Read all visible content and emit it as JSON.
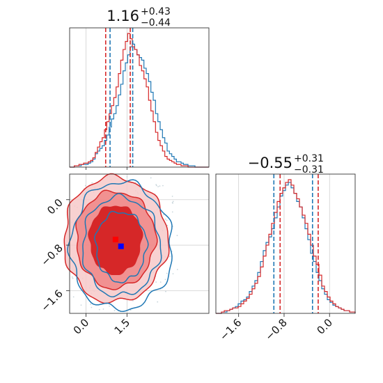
{
  "chart_data": {
    "type": "corner",
    "colors": {
      "blue": "#1f77b4",
      "red": "#d62728",
      "marker_blue": "#0000ff",
      "marker_red": "#ff0000",
      "grid": "#d0d0d0"
    },
    "params": [
      {
        "title_value": "1.16",
        "title_plus": "+0.43",
        "title_minus": "−0.44",
        "range": [
          -0.6,
          4.5
        ],
        "ticks": [
          0.0,
          1.5
        ],
        "tick_labels": [
          "0.0",
          "1.5"
        ],
        "quantile_lines_blue": [
          0.88,
          1.71
        ],
        "quantile_lines_red": [
          0.72,
          1.62
        ]
      },
      {
        "title_value": "−0.55",
        "title_plus": "+0.31",
        "title_minus": "−0.31",
        "range": [
          -2.0,
          0.45
        ],
        "ticks": [
          -1.6,
          -0.8,
          0.0
        ],
        "tick_labels": [
          "−1.6",
          "−0.8",
          "0.0"
        ],
        "quantile_lines_blue": [
          -0.98,
          -0.3
        ],
        "quantile_lines_red": [
          -0.87,
          -0.2
        ]
      }
    ],
    "hist_x_blue": [
      0.0,
      0.0,
      0.01,
      0.01,
      0.01,
      0.02,
      0.02,
      0.02,
      0.03,
      0.04,
      0.06,
      0.1,
      0.12,
      0.14,
      0.16,
      0.2,
      0.24,
      0.3,
      0.36,
      0.4,
      0.46,
      0.54,
      0.62,
      0.72,
      0.78,
      0.84,
      0.9,
      0.92,
      0.88,
      0.84,
      0.82,
      0.8,
      0.74,
      0.7,
      0.64,
      0.56,
      0.5,
      0.4,
      0.34,
      0.28,
      0.22,
      0.18,
      0.12,
      0.1,
      0.08,
      0.06,
      0.04,
      0.04,
      0.03,
      0.02,
      0.02,
      0.01,
      0.01,
      0.01,
      0.0,
      0.0,
      0.0,
      0.0,
      0.0,
      0.0
    ],
    "hist_x_red": [
      0.0,
      0.0,
      0.01,
      0.01,
      0.02,
      0.02,
      0.03,
      0.03,
      0.04,
      0.05,
      0.07,
      0.11,
      0.15,
      0.19,
      0.22,
      0.28,
      0.34,
      0.4,
      0.46,
      0.52,
      0.6,
      0.7,
      0.8,
      0.88,
      0.94,
      1.0,
      0.96,
      0.9,
      0.88,
      0.84,
      0.76,
      0.72,
      0.66,
      0.6,
      0.5,
      0.42,
      0.34,
      0.26,
      0.2,
      0.16,
      0.12,
      0.08,
      0.06,
      0.05,
      0.04,
      0.03,
      0.02,
      0.02,
      0.01,
      0.01,
      0.01,
      0.0,
      0.0,
      0.0,
      0.0,
      0.0,
      0.0,
      0.0,
      0.0,
      0.0
    ],
    "hist_y_blue": [
      0.0,
      0.0,
      0.01,
      0.01,
      0.02,
      0.03,
      0.04,
      0.05,
      0.07,
      0.09,
      0.1,
      0.12,
      0.16,
      0.2,
      0.24,
      0.3,
      0.38,
      0.46,
      0.52,
      0.56,
      0.62,
      0.7,
      0.78,
      0.86,
      0.9,
      0.94,
      0.96,
      0.92,
      0.88,
      0.82,
      0.78,
      0.7,
      0.62,
      0.54,
      0.44,
      0.38,
      0.3,
      0.24,
      0.18,
      0.14,
      0.1,
      0.08,
      0.06,
      0.05,
      0.04,
      0.03,
      0.02,
      0.02,
      0.01,
      0.01
    ],
    "hist_y_red": [
      0.0,
      0.0,
      0.01,
      0.02,
      0.02,
      0.03,
      0.04,
      0.04,
      0.05,
      0.07,
      0.09,
      0.11,
      0.14,
      0.18,
      0.22,
      0.27,
      0.34,
      0.42,
      0.5,
      0.58,
      0.66,
      0.74,
      0.82,
      0.88,
      0.92,
      0.96,
      0.98,
      0.94,
      0.88,
      0.84,
      0.78,
      0.72,
      0.66,
      0.58,
      0.5,
      0.42,
      0.36,
      0.28,
      0.2,
      0.16,
      0.12,
      0.09,
      0.07,
      0.05,
      0.04,
      0.03,
      0.02,
      0.02,
      0.01,
      0.01
    ],
    "joint": {
      "center_blue": [
        1.28,
        -0.82
      ],
      "center_red": [
        1.08,
        -0.7
      ],
      "contour_radii": [
        [
          0.95,
          0.6
        ],
        [
          1.45,
          0.85
        ],
        [
          1.9,
          1.1
        ]
      ]
    }
  }
}
